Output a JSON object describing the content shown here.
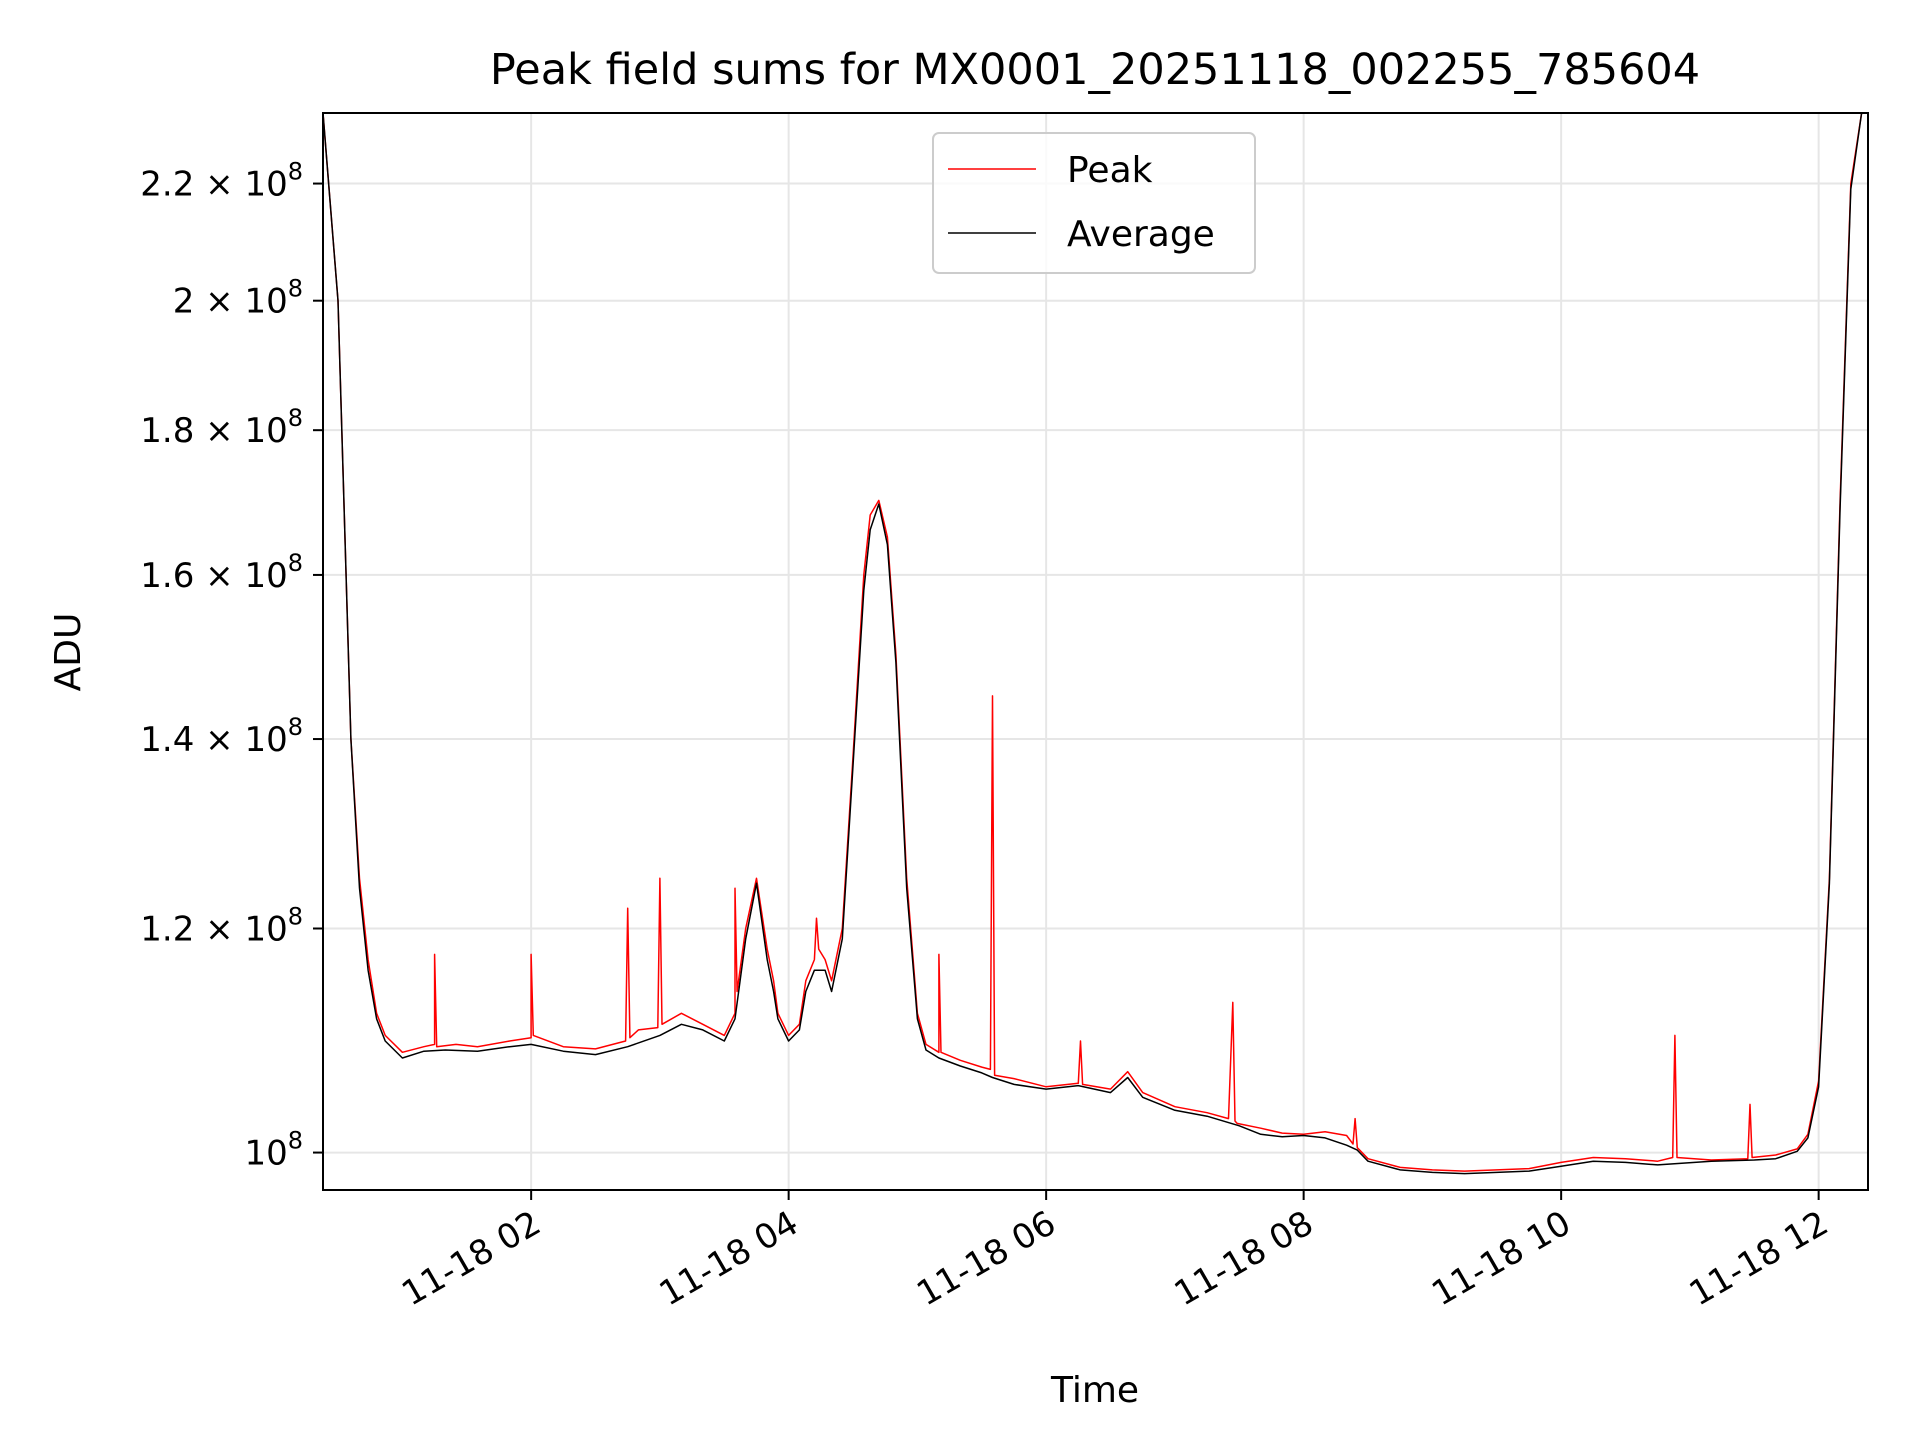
{
  "chart_data": {
    "type": "line",
    "title": "Peak field sums for MX0001_20251118_002255_785604",
    "xlabel": "Time",
    "ylabel": "ADU",
    "y_scale": "log",
    "ylim": [
      97000000,
      233000000
    ],
    "xlim": [
      "2025-11-18 00:23",
      "2025-11-18 12:23"
    ],
    "grid": true,
    "legend": "top-center",
    "x_ticks": [
      "11-18 02",
      "11-18 04",
      "11-18 06",
      "11-18 08",
      "11-18 10",
      "11-18 12"
    ],
    "x_tick_values": [
      "2025-11-18 02:00",
      "2025-11-18 04:00",
      "2025-11-18 06:00",
      "2025-11-18 08:00",
      "2025-11-18 10:00",
      "2025-11-18 12:00"
    ],
    "y_ticks": [
      {
        "value": 100000000,
        "mantissa": "",
        "exp": "8"
      },
      {
        "value": 120000000,
        "mantissa": "1.2",
        "exp": "8"
      },
      {
        "value": 140000000,
        "mantissa": "1.4",
        "exp": "8"
      },
      {
        "value": 160000000,
        "mantissa": "1.6",
        "exp": "8"
      },
      {
        "value": 180000000,
        "mantissa": "1.8",
        "exp": "8"
      },
      {
        "value": 200000000,
        "mantissa": "2",
        "exp": "8"
      },
      {
        "value": 220000000,
        "mantissa": "2.2",
        "exp": "8"
      }
    ],
    "colors": {
      "Peak": "#ff0000",
      "Average": "#000000"
    },
    "series": [
      {
        "name": "Peak",
        "x": [
          "2025-11-18 00:23",
          "2025-11-18 00:30",
          "2025-11-18 00:36",
          "2025-11-18 00:40",
          "2025-11-18 00:44",
          "2025-11-18 00:48",
          "2025-11-18 00:52",
          "2025-11-18 01:00",
          "2025-11-18 01:10",
          "2025-11-18 01:15",
          "2025-11-18 01:15",
          "2025-11-18 01:16",
          "2025-11-18 01:25",
          "2025-11-18 01:35",
          "2025-11-18 01:50",
          "2025-11-18 02:00",
          "2025-11-18 02:00",
          "2025-11-18 02:01",
          "2025-11-18 02:15",
          "2025-11-18 02:30",
          "2025-11-18 02:44",
          "2025-11-18 02:45",
          "2025-11-18 02:46",
          "2025-11-18 02:50",
          "2025-11-18 02:59",
          "2025-11-18 03:00",
          "2025-11-18 03:01",
          "2025-11-18 03:10",
          "2025-11-18 03:20",
          "2025-11-18 03:30",
          "2025-11-18 03:35",
          "2025-11-18 03:35",
          "2025-11-18 03:36",
          "2025-11-18 03:40",
          "2025-11-18 03:45",
          "2025-11-18 03:50",
          "2025-11-18 03:53",
          "2025-11-18 03:55",
          "2025-11-18 04:00",
          "2025-11-18 04:05",
          "2025-11-18 04:08",
          "2025-11-18 04:12",
          "2025-11-18 04:13",
          "2025-11-18 04:14",
          "2025-11-18 04:17",
          "2025-11-18 04:20",
          "2025-11-18 04:25",
          "2025-11-18 04:30",
          "2025-11-18 04:35",
          "2025-11-18 04:38",
          "2025-11-18 04:42",
          "2025-11-18 04:46",
          "2025-11-18 04:50",
          "2025-11-18 04:55",
          "2025-11-18 05:00",
          "2025-11-18 05:04",
          "2025-11-18 05:10",
          "2025-11-18 05:10",
          "2025-11-18 05:11",
          "2025-11-18 05:20",
          "2025-11-18 05:30",
          "2025-11-18 05:34",
          "2025-11-18 05:35",
          "2025-11-18 05:36",
          "2025-11-18 05:45",
          "2025-11-18 06:00",
          "2025-11-18 06:15",
          "2025-11-18 06:16",
          "2025-11-18 06:17",
          "2025-11-18 06:30",
          "2025-11-18 06:38",
          "2025-11-18 06:45",
          "2025-11-18 07:00",
          "2025-11-18 07:15",
          "2025-11-18 07:25",
          "2025-11-18 07:27",
          "2025-11-18 07:28",
          "2025-11-18 07:29",
          "2025-11-18 07:40",
          "2025-11-18 07:50",
          "2025-11-18 08:00",
          "2025-11-18 08:10",
          "2025-11-18 08:20",
          "2025-11-18 08:23",
          "2025-11-18 08:24",
          "2025-11-18 08:25",
          "2025-11-18 08:30",
          "2025-11-18 08:45",
          "2025-11-18 09:00",
          "2025-11-18 09:15",
          "2025-11-18 09:30",
          "2025-11-18 09:45",
          "2025-11-18 10:00",
          "2025-11-18 10:15",
          "2025-11-18 10:30",
          "2025-11-18 10:45",
          "2025-11-18 10:52",
          "2025-11-18 10:53",
          "2025-11-18 10:54",
          "2025-11-18 11:10",
          "2025-11-18 11:27",
          "2025-11-18 11:28",
          "2025-11-18 11:29",
          "2025-11-18 11:40",
          "2025-11-18 11:50",
          "2025-11-18 11:55",
          "2025-11-18 12:00",
          "2025-11-18 12:05",
          "2025-11-18 12:10",
          "2025-11-18 12:15",
          "2025-11-18 12:20"
        ],
        "y": [
          233000000,
          200000000,
          140000000,
          125000000,
          117000000,
          112000000,
          110000000,
          108500000,
          109000000,
          109200000,
          117500000,
          109000000,
          109200000,
          109000000,
          109500000,
          109800000,
          117500000,
          110000000,
          109000000,
          108800000,
          109500000,
          122000000,
          109800000,
          110500000,
          110700000,
          125000000,
          111000000,
          112000000,
          111000000,
          110000000,
          112000000,
          124000000,
          114000000,
          120000000,
          125000000,
          118000000,
          115000000,
          112000000,
          110000000,
          111000000,
          115000000,
          117000000,
          121000000,
          118000000,
          117000000,
          115000000,
          120000000,
          138000000,
          160000000,
          168000000,
          170000000,
          165000000,
          150000000,
          125000000,
          112000000,
          109200000,
          108500000,
          117500000,
          108500000,
          107800000,
          107200000,
          107000000,
          145000000,
          106500000,
          106200000,
          105500000,
          105800000,
          109500000,
          105700000,
          105300000,
          106800000,
          105000000,
          103800000,
          103300000,
          102800000,
          113000000,
          102600000,
          102400000,
          102000000,
          101600000,
          101500000,
          101700000,
          101400000,
          100700000,
          102800000,
          100400000,
          99500000,
          98800000,
          98600000,
          98500000,
          98600000,
          98700000,
          99200000,
          99600000,
          99500000,
          99300000,
          99600000,
          110000000,
          99600000,
          99400000,
          99500000,
          104000000,
          99600000,
          99800000,
          100300000,
          101500000,
          106000000,
          125000000,
          170000000,
          220000000,
          233000000
        ]
      },
      {
        "name": "Average",
        "x": [
          "2025-11-18 00:23",
          "2025-11-18 00:30",
          "2025-11-18 00:36",
          "2025-11-18 00:40",
          "2025-11-18 00:44",
          "2025-11-18 00:48",
          "2025-11-18 00:52",
          "2025-11-18 01:00",
          "2025-11-18 01:10",
          "2025-11-18 01:20",
          "2025-11-18 01:35",
          "2025-11-18 01:50",
          "2025-11-18 02:00",
          "2025-11-18 02:15",
          "2025-11-18 02:30",
          "2025-11-18 02:45",
          "2025-11-18 03:00",
          "2025-11-18 03:10",
          "2025-11-18 03:20",
          "2025-11-18 03:30",
          "2025-11-18 03:35",
          "2025-11-18 03:40",
          "2025-11-18 03:45",
          "2025-11-18 03:50",
          "2025-11-18 03:53",
          "2025-11-18 03:55",
          "2025-11-18 04:00",
          "2025-11-18 04:05",
          "2025-11-18 04:08",
          "2025-11-18 04:12",
          "2025-11-18 04:17",
          "2025-11-18 04:20",
          "2025-11-18 04:25",
          "2025-11-18 04:30",
          "2025-11-18 04:35",
          "2025-11-18 04:38",
          "2025-11-18 04:42",
          "2025-11-18 04:46",
          "2025-11-18 04:50",
          "2025-11-18 04:55",
          "2025-11-18 05:00",
          "2025-11-18 05:04",
          "2025-11-18 05:10",
          "2025-11-18 05:20",
          "2025-11-18 05:30",
          "2025-11-18 05:35",
          "2025-11-18 05:45",
          "2025-11-18 06:00",
          "2025-11-18 06:15",
          "2025-11-18 06:30",
          "2025-11-18 06:38",
          "2025-11-18 06:45",
          "2025-11-18 07:00",
          "2025-11-18 07:15",
          "2025-11-18 07:30",
          "2025-11-18 07:40",
          "2025-11-18 07:50",
          "2025-11-18 08:00",
          "2025-11-18 08:10",
          "2025-11-18 08:20",
          "2025-11-18 08:25",
          "2025-11-18 08:30",
          "2025-11-18 08:45",
          "2025-11-18 09:00",
          "2025-11-18 09:15",
          "2025-11-18 09:30",
          "2025-11-18 09:45",
          "2025-11-18 10:00",
          "2025-11-18 10:15",
          "2025-11-18 10:30",
          "2025-11-18 10:45",
          "2025-11-18 11:10",
          "2025-11-18 11:30",
          "2025-11-18 11:40",
          "2025-11-18 11:50",
          "2025-11-18 11:55",
          "2025-11-18 12:00",
          "2025-11-18 12:05",
          "2025-11-18 12:10",
          "2025-11-18 12:15",
          "2025-11-18 12:20"
        ],
        "y": [
          233000000,
          200000000,
          140000000,
          124000000,
          116000000,
          111500000,
          109500000,
          108000000,
          108600000,
          108700000,
          108600000,
          109000000,
          109200000,
          108600000,
          108300000,
          109000000,
          110000000,
          111000000,
          110500000,
          109500000,
          111500000,
          119000000,
          124500000,
          117000000,
          114000000,
          111500000,
          109500000,
          110500000,
          114000000,
          116000000,
          116000000,
          114000000,
          119000000,
          137000000,
          158000000,
          166000000,
          169500000,
          164000000,
          149000000,
          124000000,
          111500000,
          108700000,
          108000000,
          107300000,
          106700000,
          106300000,
          105700000,
          105300000,
          105600000,
          105000000,
          106300000,
          104600000,
          103500000,
          103000000,
          102200000,
          101500000,
          101300000,
          101400000,
          101200000,
          100600000,
          100200000,
          99300000,
          98600000,
          98400000,
          98300000,
          98400000,
          98500000,
          98900000,
          99300000,
          99200000,
          99000000,
          99300000,
          99400000,
          99500000,
          100100000,
          101200000,
          105500000,
          124500000,
          169000000,
          219000000,
          233000000
        ]
      }
    ]
  }
}
